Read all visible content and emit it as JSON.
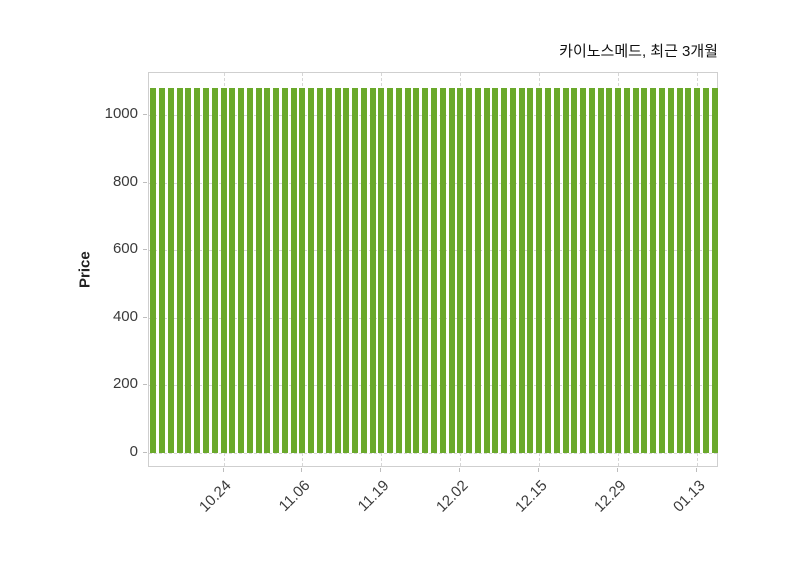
{
  "chart_data": {
    "type": "bar",
    "title": "카이노스메드, 최근 3개월",
    "ylabel": "Price",
    "xlabel": "",
    "ylim": [
      -45,
      1125
    ],
    "yticks": [
      0,
      200,
      400,
      600,
      800,
      1000
    ],
    "ytick_labels": [
      "0",
      "200",
      "400",
      "600",
      "800",
      "1000"
    ],
    "xtick_labels": [
      "10.24",
      "11.06",
      "11.19",
      "12.02",
      "12.15",
      "12.29",
      "01.13"
    ],
    "xtick_bar_indices": [
      8,
      17,
      26,
      35,
      44,
      53,
      62
    ],
    "n_bars": 65,
    "values": [
      1080,
      1080,
      1080,
      1080,
      1080,
      1080,
      1080,
      1080,
      1080,
      1080,
      1080,
      1080,
      1080,
      1080,
      1080,
      1080,
      1080,
      1080,
      1080,
      1080,
      1080,
      1080,
      1080,
      1080,
      1080,
      1080,
      1080,
      1080,
      1080,
      1080,
      1080,
      1080,
      1080,
      1080,
      1080,
      1080,
      1080,
      1080,
      1080,
      1080,
      1080,
      1080,
      1080,
      1080,
      1080,
      1080,
      1080,
      1080,
      1080,
      1080,
      1080,
      1080,
      1080,
      1080,
      1080,
      1080,
      1080,
      1080,
      1080,
      1080,
      1080,
      1080,
      1080,
      1080,
      1080
    ],
    "bar_color": "#6aa92b",
    "grid": {
      "style": "dashed",
      "color": "#d6d6d6",
      "horizontal": true,
      "vertical": true
    },
    "legend_position": "none"
  },
  "colors": {
    "background": "#ffffff",
    "plot_border": "#cfcfcf",
    "grid": "#d6d6d6",
    "bar": "#6aa92b",
    "title_text": "#111111",
    "tick_text": "#3a3a3a"
  }
}
